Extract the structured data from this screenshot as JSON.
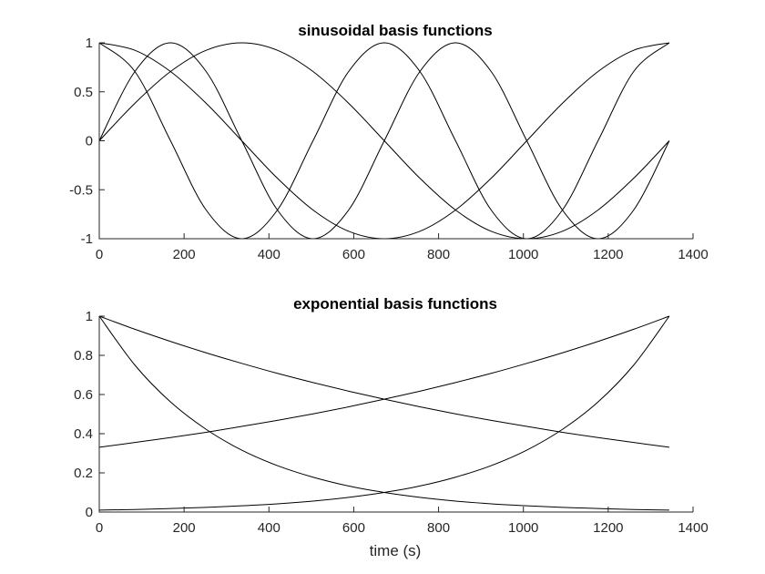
{
  "chart_data": [
    {
      "type": "line",
      "title": "sinusoidal basis functions",
      "xlabel": "",
      "ylabel": "",
      "xlim": [
        0,
        1400
      ],
      "ylim": [
        -1,
        1
      ],
      "xticks": [
        0,
        200,
        400,
        600,
        800,
        1000,
        1200,
        1400
      ],
      "xtick_labels": [
        "0",
        "200",
        "400",
        "600",
        "800",
        "1000",
        "1200",
        "1400"
      ],
      "yticks": [
        1,
        0.5,
        0,
        -0.5,
        -1
      ],
      "ytick_labels": [
        "1",
        "0.5",
        "0",
        "-0.5",
        "-1"
      ],
      "grid": false,
      "line_color": "#000000",
      "x": [
        0,
        84,
        168,
        252,
        336,
        420,
        504,
        588,
        672,
        756,
        840,
        924,
        1008,
        1092,
        1176,
        1260,
        1344
      ],
      "series": [
        {
          "values": [
            1,
            0.924,
            0.707,
            0.383,
            0,
            -0.383,
            -0.707,
            -0.924,
            -1,
            -0.924,
            -0.707,
            -0.383,
            0,
            0.383,
            0.707,
            0.924,
            1
          ]
        },
        {
          "values": [
            0,
            0.383,
            0.707,
            0.924,
            1,
            0.924,
            0.707,
            0.383,
            0,
            -0.383,
            -0.707,
            -0.924,
            -1,
            -0.924,
            -0.707,
            -0.383,
            0
          ]
        },
        {
          "values": [
            1,
            0.707,
            0,
            -0.707,
            -1,
            -0.707,
            0,
            0.707,
            1,
            0.707,
            0,
            -0.707,
            -1,
            -0.707,
            0,
            0.707,
            1
          ]
        },
        {
          "values": [
            0,
            0.707,
            1,
            0.707,
            0,
            -0.707,
            -1,
            -0.707,
            0,
            0.707,
            1,
            0.707,
            0,
            -0.707,
            -1,
            -0.707,
            0
          ]
        }
      ]
    },
    {
      "type": "line",
      "title": "exponential basis functions",
      "xlabel": "time (s)",
      "ylabel": "",
      "xlim": [
        0,
        1400
      ],
      "ylim": [
        0,
        1
      ],
      "xticks": [
        0,
        200,
        400,
        600,
        800,
        1000,
        1200,
        1400
      ],
      "xtick_labels": [
        "0",
        "200",
        "400",
        "600",
        "800",
        "1000",
        "1200",
        "1400"
      ],
      "yticks": [
        1,
        0.8,
        0.6,
        0.4,
        0.2,
        0
      ],
      "ytick_labels": [
        "1",
        "0.8",
        "0.6",
        "0.4",
        "0.2",
        "0"
      ],
      "grid": false,
      "line_color": "#000000",
      "x": [
        0,
        84,
        168,
        252,
        336,
        420,
        504,
        588,
        672,
        756,
        840,
        924,
        1008,
        1092,
        1176,
        1260,
        1344
      ],
      "series": [
        {
          "values": [
            1,
            0.933,
            0.871,
            0.813,
            0.759,
            0.708,
            0.661,
            0.617,
            0.576,
            0.537,
            0.501,
            0.468,
            0.437,
            0.407,
            0.38,
            0.355,
            0.331
          ]
        },
        {
          "values": [
            0.331,
            0.355,
            0.38,
            0.407,
            0.437,
            0.468,
            0.501,
            0.537,
            0.576,
            0.617,
            0.661,
            0.708,
            0.759,
            0.813,
            0.871,
            0.933,
            1
          ]
        },
        {
          "values": [
            1,
            0.75,
            0.562,
            0.422,
            0.316,
            0.237,
            0.178,
            0.133,
            0.1,
            0.075,
            0.056,
            0.042,
            0.032,
            0.024,
            0.018,
            0.013,
            0.01
          ]
        },
        {
          "values": [
            0.01,
            0.013,
            0.018,
            0.024,
            0.032,
            0.042,
            0.056,
            0.075,
            0.1,
            0.133,
            0.178,
            0.237,
            0.316,
            0.422,
            0.562,
            0.75,
            1
          ]
        }
      ]
    }
  ]
}
